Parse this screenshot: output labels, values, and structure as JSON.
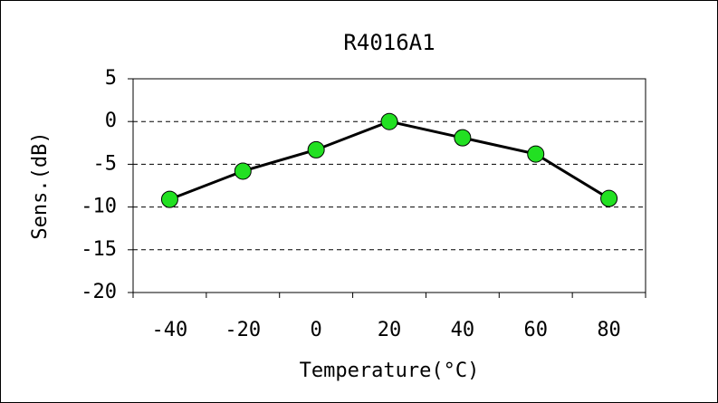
{
  "chart_data": {
    "type": "line",
    "title": "R4016A1",
    "x_label": "Temperature(°C)",
    "y_label": "Sens.(dB)",
    "categories": [
      "-40",
      "-20",
      "0",
      "20",
      "40",
      "60",
      "80"
    ],
    "series": [
      {
        "name": "R4016A1",
        "color": "#22e022",
        "values": [
          -9.1,
          -5.8,
          -3.3,
          0.0,
          -1.9,
          -3.8,
          -9.0
        ]
      }
    ],
    "ylim": [
      -20,
      5
    ],
    "yticks": [
      -20,
      -15,
      -10,
      -5,
      0,
      5
    ],
    "grid": true
  }
}
